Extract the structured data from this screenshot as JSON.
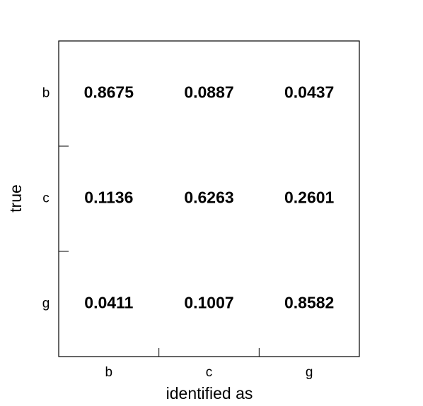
{
  "chart_data": {
    "type": "table",
    "title": "",
    "xlabel": "identified as",
    "ylabel": "true",
    "x_categories": [
      "b",
      "c",
      "g"
    ],
    "y_categories": [
      "b",
      "c",
      "g"
    ],
    "values": [
      [
        "0.8675",
        "0.0887",
        "0.0437"
      ],
      [
        "0.1136",
        "0.6263",
        "0.2601"
      ],
      [
        "0.0411",
        "0.1007",
        "0.8582"
      ]
    ],
    "grid": false,
    "legend": "none",
    "colors": {
      "frame": "#000000",
      "text": "#000000",
      "background": "#ffffff"
    }
  }
}
